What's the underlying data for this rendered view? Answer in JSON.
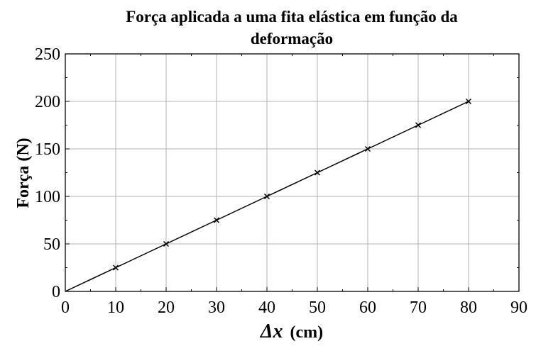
{
  "chart_data": {
    "type": "line",
    "title_line1": "Força aplicada a uma fita elástica em função da",
    "title_line2": "deformação",
    "xlabel": "Δx",
    "xlabel_unit": "(cm)",
    "ylabel": "Força (N)",
    "xlim": [
      0,
      90
    ],
    "ylim": [
      0,
      250
    ],
    "xticks": [
      "0",
      "10",
      "20",
      "30",
      "40",
      "50",
      "60",
      "70",
      "80",
      "90"
    ],
    "yticks": [
      "0",
      "50",
      "100",
      "150",
      "200",
      "250"
    ],
    "grid": true,
    "series": [
      {
        "x": [
          0,
          10,
          20,
          30,
          40,
          50,
          60,
          70,
          80
        ],
        "y": [
          0,
          25,
          50,
          75,
          100,
          125,
          150,
          175,
          200
        ],
        "marker": "x",
        "color": "#000000"
      }
    ]
  }
}
